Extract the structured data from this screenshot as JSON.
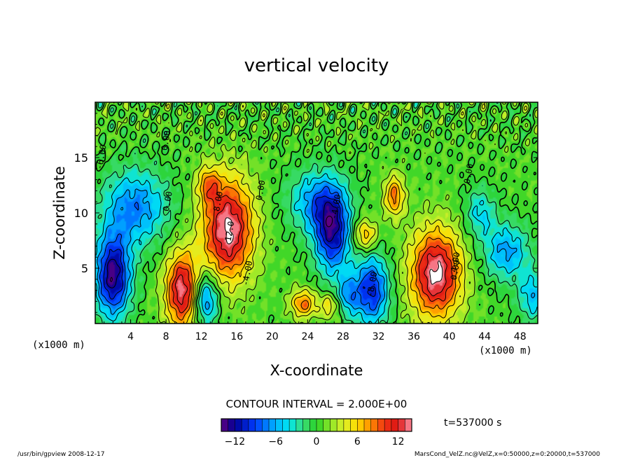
{
  "chart_data": {
    "type": "heatmap",
    "title": "vertical velocity",
    "xlabel": "X-coordinate",
    "ylabel": "Z-coordinate",
    "x_unit_left": "(x1000 m)",
    "x_unit_right": "(x1000 m)",
    "xlim": [
      0,
      50
    ],
    "ylim": [
      0,
      20
    ],
    "x_ticks": [
      4,
      8,
      12,
      16,
      20,
      24,
      28,
      32,
      36,
      40,
      44,
      48
    ],
    "y_ticks": [
      5,
      10,
      15
    ],
    "contour_interval_text": "CONTOUR INTERVAL = 2.000E+00",
    "time_text": "t=537000 s",
    "colorbar": {
      "min": -14,
      "max": 14,
      "ticks": [
        -12,
        -6,
        0,
        6,
        12
      ],
      "tick_labels": [
        "−12",
        "−6",
        "0",
        "6",
        "12"
      ]
    },
    "contour_labels": [
      {
        "text": "0.00",
        "x": 8.5,
        "y": 11
      },
      {
        "text": "0.00",
        "x": 19.0,
        "y": 12
      },
      {
        "text": "0.00",
        "x": 8.3,
        "y": 16.5
      },
      {
        "text": "-4.00",
        "x": 27.5,
        "y": 10.5
      },
      {
        "text": "8.00",
        "x": 14.2,
        "y": 11
      },
      {
        "text": "12.0",
        "x": 15.5,
        "y": 8.3
      },
      {
        "text": "-4.00",
        "x": 17.5,
        "y": 4.5
      },
      {
        "text": "-8.00",
        "x": 31.6,
        "y": 3.5
      },
      {
        "text": "0.00",
        "x": 41.0,
        "y": 4.8
      },
      {
        "text": "4.00",
        "x": 41.0,
        "y": 5.5
      },
      {
        "text": "-6.00",
        "x": 1.0,
        "y": 15.0
      },
      {
        "text": "0.00",
        "x": 42.5,
        "y": 13.5
      }
    ],
    "features": [
      {
        "kind": "updraft",
        "x": 15.0,
        "z": 8.5,
        "peak": 14,
        "sx": 2.0,
        "sz": 3.2
      },
      {
        "kind": "updraft",
        "x": 38.5,
        "z": 4.5,
        "peak": 14,
        "sx": 2.0,
        "sz": 2.8
      },
      {
        "kind": "updraft",
        "x": 9.8,
        "z": 3.0,
        "peak": 13,
        "sx": 1.3,
        "sz": 2.4
      },
      {
        "kind": "updraft",
        "x": 33.8,
        "z": 11.5,
        "peak": 8,
        "sx": 0.8,
        "sz": 1.3
      },
      {
        "kind": "updraft",
        "x": 30.5,
        "z": 8.0,
        "peak": 7,
        "sx": 0.9,
        "sz": 1.0
      },
      {
        "kind": "updraft",
        "x": 23.5,
        "z": 1.8,
        "peak": 8,
        "sx": 1.0,
        "sz": 0.9
      },
      {
        "kind": "updraft",
        "x": 26.5,
        "z": 1.6,
        "peak": 5,
        "sx": 0.9,
        "sz": 0.8
      },
      {
        "kind": "updraft",
        "x": 12.8,
        "z": 12.5,
        "peak": 6,
        "sx": 0.9,
        "sz": 1.2
      },
      {
        "kind": "downdraft",
        "x": 2.0,
        "z": 4.3,
        "peak": -14,
        "sx": 1.4,
        "sz": 2.6
      },
      {
        "kind": "downdraft",
        "x": 26.8,
        "z": 8.2,
        "peak": -12,
        "sx": 1.4,
        "sz": 2.6
      },
      {
        "kind": "downdraft",
        "x": 25.0,
        "z": 11.0,
        "peak": -7,
        "sx": 2.2,
        "sz": 2.0
      },
      {
        "kind": "downdraft",
        "x": 31.2,
        "z": 3.0,
        "peak": -11,
        "sx": 1.4,
        "sz": 2.2
      },
      {
        "kind": "downdraft",
        "x": 12.5,
        "z": 2.2,
        "peak": -9,
        "sx": 1.0,
        "sz": 1.6
      },
      {
        "kind": "downdraft",
        "x": 4.5,
        "z": 10.5,
        "peak": -8,
        "sx": 2.6,
        "sz": 2.4
      },
      {
        "kind": "downdraft",
        "x": 46.5,
        "z": 6.5,
        "peak": -7,
        "sx": 1.8,
        "sz": 1.8
      },
      {
        "kind": "downdraft",
        "x": 49.5,
        "z": 2.5,
        "peak": -6,
        "sx": 1.2,
        "sz": 1.6
      },
      {
        "kind": "downdraft",
        "x": 43.5,
        "z": 10.0,
        "peak": -5,
        "sx": 1.2,
        "sz": 1.6
      },
      {
        "kind": "downdraft",
        "x": 28.5,
        "z": 2.5,
        "peak": -6,
        "sx": 0.9,
        "sz": 1.3
      }
    ],
    "grid": false,
    "legend": "bottom-colorbar"
  },
  "footer": {
    "left": "/usr/bin/gpview  2008-12-17",
    "right": "MarsCond_VelZ.nc@VelZ,x=0:50000,z=0:20000,t=537000"
  }
}
